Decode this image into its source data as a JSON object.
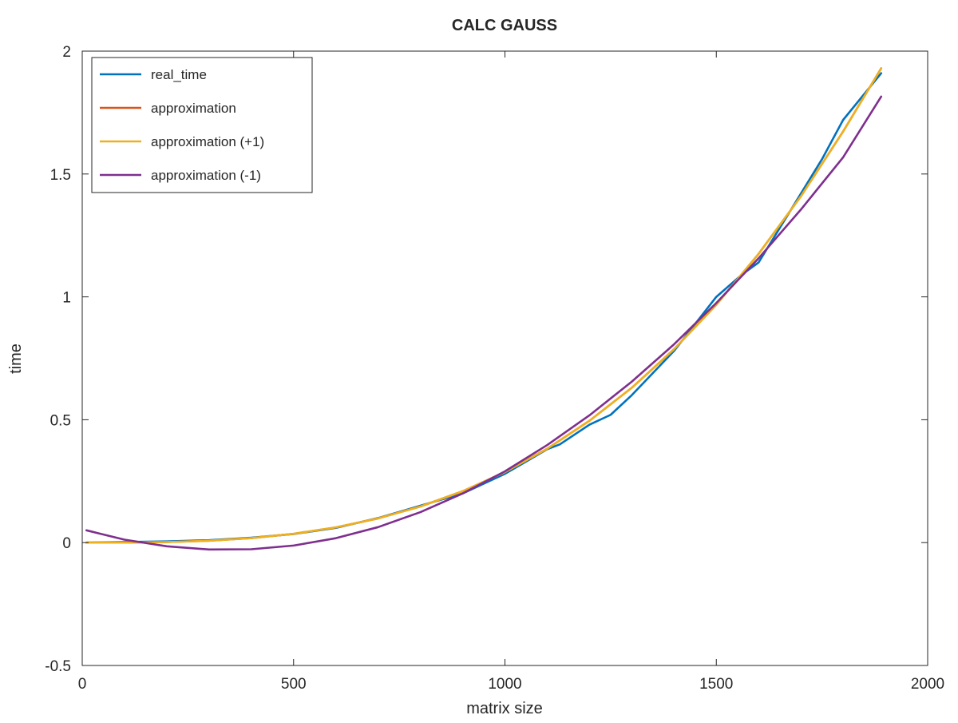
{
  "chart_data": {
    "type": "line",
    "title": "CALC GAUSS",
    "xlabel": "matrix size",
    "ylabel": "time",
    "xlim": [
      0,
      2000
    ],
    "ylim": [
      -0.5,
      2
    ],
    "xticks": [
      0,
      500,
      1000,
      1500,
      2000
    ],
    "xtick_labels": [
      "0",
      "500",
      "1000",
      "1500",
      "2000"
    ],
    "yticks": [
      -0.5,
      0,
      0.5,
      1,
      1.5,
      2
    ],
    "ytick_labels": [
      "-0.5",
      "0",
      "0.5",
      "1",
      "1.5",
      "2"
    ],
    "grid": false,
    "legend_position": "top-left",
    "series": [
      {
        "name": "real_time",
        "color": "#0072bd",
        "x": [
          10,
          200,
          300,
          400,
          500,
          600,
          700,
          800,
          900,
          1000,
          1050,
          1100,
          1130,
          1200,
          1250,
          1300,
          1400,
          1500,
          1560,
          1600,
          1650,
          1700,
          1750,
          1800,
          1890
        ],
        "y": [
          0.0,
          0.005,
          0.01,
          0.02,
          0.035,
          0.06,
          0.1,
          0.15,
          0.2,
          0.28,
          0.33,
          0.38,
          0.4,
          0.48,
          0.52,
          0.6,
          0.78,
          1.0,
          1.09,
          1.14,
          1.28,
          1.42,
          1.56,
          1.72,
          1.91
        ]
      },
      {
        "name": "approximation",
        "color": "#d95319",
        "x": [
          10,
          100,
          200,
          300,
          400,
          500,
          600,
          700,
          800,
          900,
          1000,
          1100,
          1200,
          1300,
          1400,
          1500,
          1600,
          1700,
          1800,
          1890
        ],
        "y": [
          0.0,
          0.0002,
          0.0023,
          0.0078,
          0.0184,
          0.0359,
          0.062,
          0.0984,
          0.147,
          0.209,
          0.287,
          0.382,
          0.496,
          0.63,
          0.787,
          0.968,
          1.175,
          1.409,
          1.673,
          1.93
        ]
      },
      {
        "name": "approximation (+1)",
        "color": "#edb120",
        "x": [
          10,
          100,
          200,
          300,
          400,
          500,
          600,
          700,
          800,
          900,
          1000,
          1100,
          1200,
          1300,
          1400,
          1500,
          1600,
          1700,
          1800,
          1890
        ],
        "y": [
          0.0,
          0.0002,
          0.0023,
          0.0078,
          0.0184,
          0.0359,
          0.062,
          0.0984,
          0.147,
          0.209,
          0.287,
          0.382,
          0.496,
          0.63,
          0.787,
          0.968,
          1.175,
          1.409,
          1.673,
          1.93
        ]
      },
      {
        "name": "approximation (-1)",
        "color": "#7e2f8e",
        "x": [
          10,
          100,
          200,
          300,
          400,
          500,
          600,
          700,
          800,
          900,
          1000,
          1100,
          1200,
          1300,
          1400,
          1500,
          1600,
          1700,
          1800,
          1890
        ],
        "y": [
          0.05,
          0.012,
          -0.015,
          -0.028,
          -0.027,
          -0.012,
          0.018,
          0.063,
          0.124,
          0.2,
          0.29,
          0.397,
          0.518,
          0.655,
          0.807,
          0.975,
          1.157,
          1.355,
          1.568,
          1.815
        ]
      }
    ]
  }
}
